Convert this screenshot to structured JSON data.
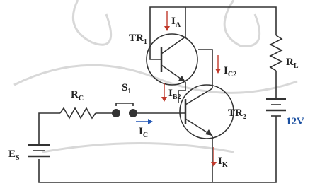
{
  "labels": [
    {
      "main": "I",
      "sub": "A"
    },
    {
      "main": "TR",
      "sub": "1"
    },
    {
      "main": "I",
      "sub": "C2"
    },
    {
      "main": "R",
      "sub": "L"
    },
    {
      "main": "I",
      "sub": "B2"
    },
    {
      "main": "R",
      "sub": "C"
    },
    {
      "main": "S",
      "sub": "1"
    },
    {
      "main": "TR",
      "sub": "2"
    },
    {
      "main": "I",
      "sub": "C"
    },
    {
      "main": "12V",
      "sub": ""
    },
    {
      "main": "E",
      "sub": "S"
    },
    {
      "main": "I",
      "sub": "K"
    }
  ]
}
